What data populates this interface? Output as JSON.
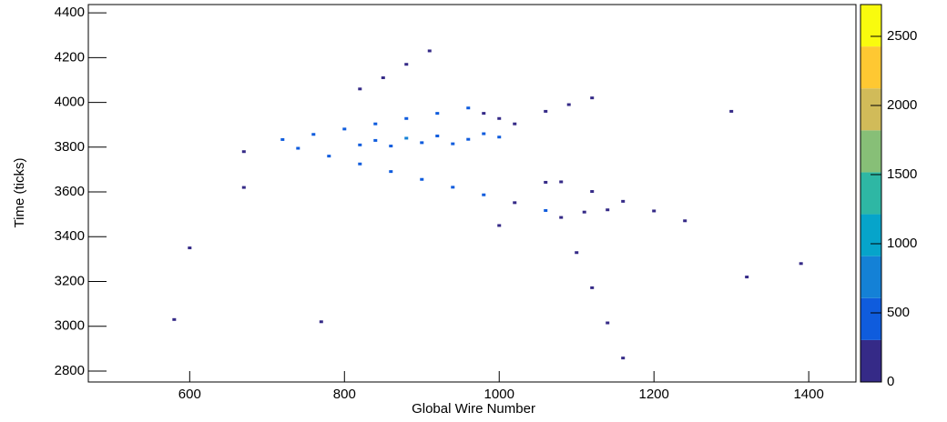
{
  "chart_data": {
    "type": "heatmap",
    "x_label": "Global Wire Number",
    "y_label": "Time (ticks)",
    "xlim": [
      469,
      1461
    ],
    "xticks": [
      600,
      800,
      1000,
      1200,
      1400
    ],
    "ylim": [
      2751,
      4437
    ],
    "yticks": [
      2800,
      3000,
      3200,
      3400,
      3600,
      3800,
      4000,
      4200,
      4400
    ],
    "zlim": [
      0,
      2730
    ],
    "zticks": [
      0,
      500,
      1000,
      1500,
      2000,
      2500
    ],
    "colorscale": [
      "#352a87",
      "#0f5cdd",
      "#1481d6",
      "#06a4ca",
      "#2eb7a4",
      "#87bf77",
      "#d1bb59",
      "#fec832",
      "#f9fb0e"
    ],
    "x": [
      720,
      760,
      800,
      840,
      880,
      920,
      960,
      980,
      1000,
      1020,
      740,
      780,
      820,
      860,
      900,
      940,
      980,
      1020,
      1060,
      1110,
      1140,
      1060,
      1080,
      1100,
      1120,
      1140,
      1160,
      1080,
      1120,
      1160,
      1200,
      1240,
      820,
      840,
      860,
      880,
      900,
      920,
      940,
      960,
      980,
      1000,
      820,
      850,
      880,
      910,
      1060,
      1090,
      1120,
      670,
      670,
      600,
      770,
      1320,
      1390,
      1300,
      1000,
      580
    ],
    "y": [
      3834,
      3857,
      3881,
      3904,
      3928,
      3951,
      3975,
      3951,
      3928,
      3904,
      3795,
      3760,
      3725,
      3691,
      3656,
      3621,
      3587,
      3552,
      3517,
      3510,
      3520,
      3643,
      3486,
      3329,
      3172,
      3015,
      2858,
      3645,
      3602,
      3558,
      3515,
      3471,
      3810,
      3830,
      3805,
      3840,
      3820,
      3850,
      3815,
      3835,
      3860,
      3845,
      4060,
      4110,
      4170,
      4230,
      3960,
      3990,
      4020,
      3780,
      3620,
      3350,
      3020,
      3220,
      3280,
      3960,
      3450,
      3030
    ],
    "z": [
      420,
      380,
      350,
      400,
      360,
      330,
      450,
      300,
      280,
      260,
      410,
      390,
      370,
      340,
      360,
      330,
      310,
      300,
      350,
      290,
      270,
      200,
      180,
      160,
      150,
      140,
      130,
      260,
      240,
      230,
      250,
      220,
      600,
      520,
      480,
      700,
      560,
      500,
      460,
      430,
      380,
      350,
      240,
      220,
      200,
      180,
      230,
      210,
      190,
      150,
      140,
      120,
      130,
      110,
      120,
      140,
      160,
      100
    ]
  }
}
